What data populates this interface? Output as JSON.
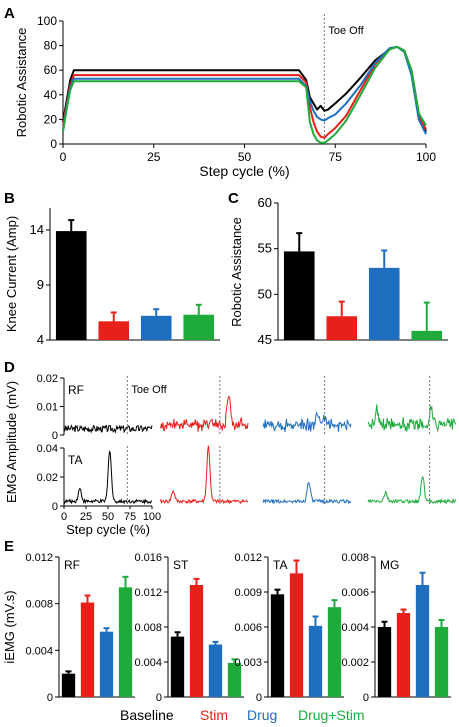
{
  "colors": {
    "baseline": "#000000",
    "stim": "#e8201a",
    "drug": "#1f6fc0",
    "drugstim": "#1faa3c",
    "dashed": "#777777"
  },
  "legend": [
    {
      "label": "Baseline",
      "color": "#000000"
    },
    {
      "label": "Stim",
      "color": "#e8201a"
    },
    {
      "label": "Drug",
      "color": "#1f6fc0"
    },
    {
      "label": "Drug+Stim",
      "color": "#1faa3c"
    }
  ],
  "chart_data": [
    {
      "panel": "A",
      "type": "line",
      "xlabel": "Step cycle (%)",
      "ylabel": "Robotic Assistance",
      "xlim": [
        0,
        100
      ],
      "ylim": [
        0,
        100
      ],
      "xticks": [
        "0",
        "25",
        "50",
        "75",
        "100"
      ],
      "yticks": [
        "0",
        "20",
        "40",
        "60",
        "80",
        "100"
      ],
      "annotation": "Toe Off",
      "annotation_x": 72,
      "series": [
        {
          "key": "baseline",
          "x": [
            0,
            1,
            2,
            3,
            4,
            20,
            40,
            60,
            65,
            67,
            68,
            69,
            70,
            71,
            72,
            73,
            75,
            78,
            82,
            86,
            90,
            92,
            94,
            96,
            98,
            100
          ],
          "y": [
            18,
            35,
            52,
            60,
            60,
            60,
            60,
            60,
            60,
            52,
            38,
            33,
            28,
            31,
            27,
            28,
            33,
            41,
            54,
            68,
            77,
            79,
            76,
            60,
            25,
            10
          ]
        },
        {
          "key": "stim",
          "x": [
            0,
            1,
            2,
            3,
            4,
            20,
            40,
            60,
            65,
            67,
            68,
            69,
            70,
            71,
            72,
            73,
            75,
            78,
            82,
            86,
            90,
            92,
            94,
            96,
            98,
            100
          ],
          "y": [
            15,
            32,
            48,
            56,
            56,
            56,
            56,
            56,
            56,
            50,
            30,
            18,
            10,
            6,
            5,
            8,
            13,
            23,
            44,
            65,
            77,
            79,
            76,
            58,
            22,
            12
          ]
        },
        {
          "key": "drug",
          "x": [
            0,
            1,
            2,
            3,
            4,
            20,
            40,
            60,
            65,
            67,
            68,
            69,
            70,
            71,
            72,
            73,
            75,
            78,
            82,
            86,
            90,
            92,
            94,
            96,
            98,
            100
          ],
          "y": [
            12,
            30,
            46,
            53,
            53,
            53,
            53,
            53,
            53,
            47,
            35,
            27,
            22,
            20,
            19,
            21,
            24,
            33,
            48,
            66,
            78,
            79,
            75,
            56,
            20,
            8
          ]
        },
        {
          "key": "drugstim",
          "x": [
            0,
            1,
            2,
            3,
            4,
            20,
            40,
            60,
            65,
            67,
            68,
            69,
            70,
            71,
            72,
            73,
            75,
            78,
            82,
            86,
            90,
            92,
            94,
            96,
            98,
            100
          ],
          "y": [
            10,
            28,
            44,
            51,
            51,
            51,
            51,
            51,
            51,
            46,
            18,
            8,
            3,
            1,
            1,
            3,
            8,
            19,
            40,
            62,
            77,
            79,
            76,
            60,
            25,
            15
          ]
        }
      ]
    },
    {
      "panel": "B",
      "type": "bar",
      "ylabel": "Knee Current (Amp)",
      "ylim": [
        4,
        16
      ],
      "yticks": [
        "4",
        "9",
        "14"
      ],
      "categories": [
        "Baseline",
        "Stim",
        "Drug",
        "Drug+Stim"
      ],
      "values": [
        13.9,
        5.7,
        6.2,
        6.3
      ],
      "errors": [
        1.0,
        0.8,
        0.6,
        0.9
      ]
    },
    {
      "panel": "C",
      "type": "bar",
      "ylabel": "Robotic Assistance",
      "ylim": [
        45,
        60
      ],
      "yticks": [
        "45",
        "50",
        "55",
        "60"
      ],
      "categories": [
        "Baseline",
        "Stim",
        "Drug",
        "Drug+Stim"
      ],
      "values": [
        54.7,
        47.6,
        52.9,
        46.0
      ],
      "errors": [
        2.0,
        1.6,
        1.9,
        3.1
      ]
    },
    {
      "panel": "D",
      "type": "line",
      "ylabel": "EMG Amplitude (mV)",
      "xlabel": "Step cycle (%)",
      "xticks": [
        "0",
        "25",
        "50",
        "75",
        "100"
      ],
      "annotation": "Toe Off",
      "rows": [
        {
          "muscle": "RF",
          "yticks": [
            "0",
            "0.01",
            "0.02"
          ],
          "ylim": [
            0,
            0.02
          ]
        },
        {
          "muscle": "TA",
          "yticks": [
            "0",
            "0.02",
            "0.04"
          ],
          "ylim": [
            0,
            0.04
          ]
        }
      ]
    },
    {
      "panel": "E",
      "type": "bar",
      "ylabel": "iEMG (mV.s)",
      "categories": [
        "Baseline",
        "Stim",
        "Drug",
        "Drug+Stim"
      ],
      "subplots": [
        {
          "title": "RF",
          "ylim": [
            0,
            0.012
          ],
          "yticks": [
            "0",
            "0.004",
            "0.008",
            "0.012"
          ],
          "values": [
            0.002,
            0.0081,
            0.0056,
            0.0094
          ],
          "errors": [
            0.0002,
            0.0006,
            0.0003,
            0.0009
          ]
        },
        {
          "title": "ST",
          "ylim": [
            0,
            0.016
          ],
          "yticks": [
            "0",
            "0.004",
            "0.008",
            "0.012",
            "0.016"
          ],
          "values": [
            0.0069,
            0.0128,
            0.006,
            0.0039
          ],
          "errors": [
            0.0005,
            0.0007,
            0.0003,
            0.0004
          ]
        },
        {
          "title": "TA",
          "ylim": [
            0,
            0.012
          ],
          "yticks": [
            "0",
            "0.003",
            "0.006",
            "0.009",
            "0.012"
          ],
          "values": [
            0.0088,
            0.0106,
            0.0061,
            0.0077
          ],
          "errors": [
            0.0004,
            0.0011,
            0.0008,
            0.0006
          ]
        },
        {
          "title": "MG",
          "ylim": [
            0,
            0.008
          ],
          "yticks": [
            "0",
            "0.002",
            "0.004",
            "0.006",
            "0.008"
          ],
          "values": [
            0.004,
            0.0048,
            0.0064,
            0.004
          ],
          "errors": [
            0.0003,
            0.0002,
            0.0007,
            0.0004
          ]
        }
      ]
    }
  ],
  "panel_labels": {
    "a": "A",
    "b": "B",
    "c": "C",
    "d": "D",
    "e": "E"
  }
}
